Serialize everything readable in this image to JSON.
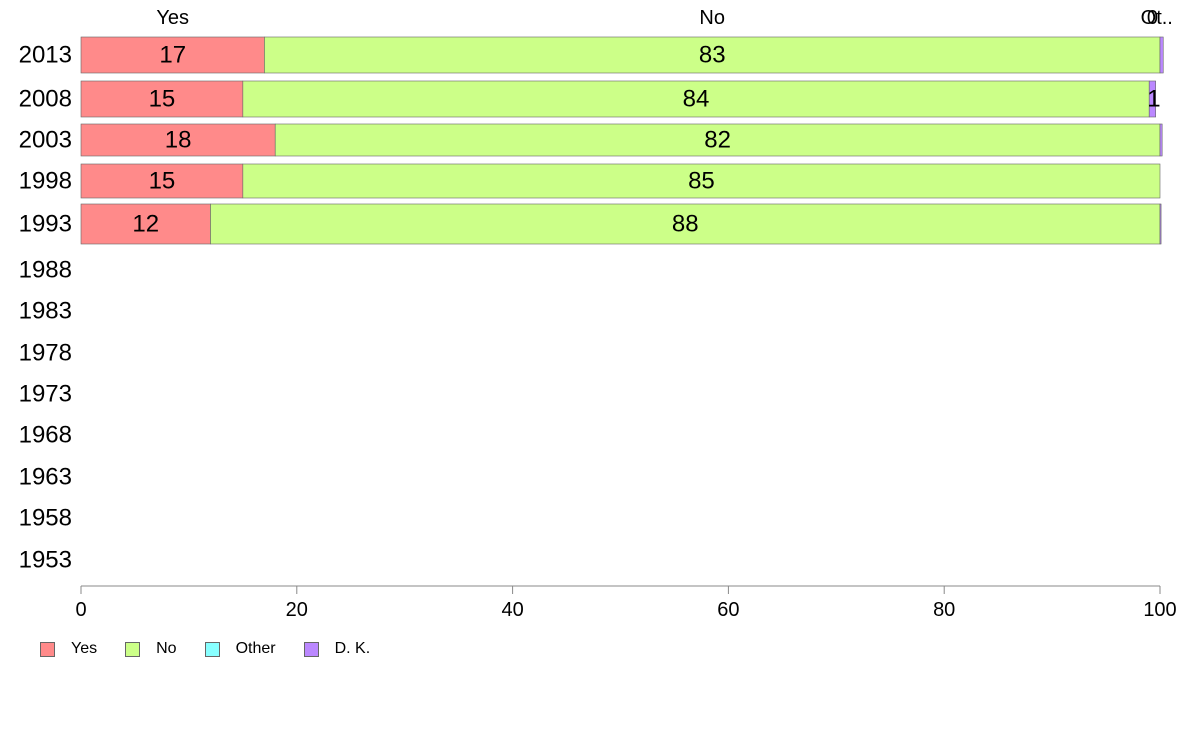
{
  "chart_data": {
    "type": "bar",
    "orientation": "horizontal",
    "stacked": true,
    "categories": [
      "2013",
      "2008",
      "2003",
      "1998",
      "1993",
      "1988",
      "1983",
      "1978",
      "1973",
      "1968",
      "1963",
      "1958",
      "1953"
    ],
    "series": [
      {
        "name": "Yes",
        "color": "#ff8a8a",
        "values": [
          17,
          15,
          18,
          15,
          12,
          null,
          null,
          null,
          null,
          null,
          null,
          null,
          null
        ]
      },
      {
        "name": "No",
        "color": "#ccff88",
        "values": [
          83,
          84,
          82,
          85,
          88,
          null,
          null,
          null,
          null,
          null,
          null,
          null,
          null
        ]
      },
      {
        "name": "Other",
        "color": "#88ffff",
        "values": [
          0,
          0,
          0,
          0,
          0,
          null,
          null,
          null,
          null,
          null,
          null,
          null,
          null
        ]
      },
      {
        "name": "D. K.",
        "color": "#bb88ff",
        "values": [
          0.3,
          0.6,
          0.2,
          0,
          0.1,
          null,
          null,
          null,
          null,
          null,
          null,
          null,
          null
        ]
      }
    ],
    "data_labels": [
      [
        "17",
        "83",
        "",
        ""
      ],
      [
        "15",
        "84",
        "",
        "1"
      ],
      [
        "18",
        "82",
        "",
        ""
      ],
      [
        "15",
        "85",
        "",
        ""
      ],
      [
        "12",
        "88",
        "",
        ""
      ]
    ],
    "top_labels": [
      {
        "text": "Yes",
        "at": 8.5
      },
      {
        "text": "No",
        "at": 58.5
      },
      {
        "text": "0",
        "at": 99.3
      },
      {
        "text": "Ot..",
        "at": 99.7
      }
    ],
    "xlim": [
      0,
      100
    ],
    "xticks": [
      0,
      20,
      40,
      60,
      80,
      100
    ],
    "legend_position": "bottom-left",
    "grid": false
  }
}
